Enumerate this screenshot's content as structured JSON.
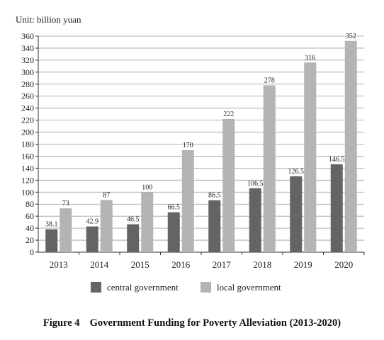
{
  "unit_label": "Unit: billion yuan",
  "caption": {
    "number": "Figure 4",
    "title": "Government Funding for Poverty Alleviation (2013-2020)"
  },
  "colors": {
    "central": "#646464",
    "local": "#b4b4b4",
    "axis": "#333333",
    "grid": "#9a9a9a"
  },
  "chart_data": {
    "type": "bar",
    "categories": [
      "2013",
      "2014",
      "2015",
      "2016",
      "2017",
      "2018",
      "2019",
      "2020"
    ],
    "series": [
      {
        "name": "central government",
        "values": [
          38.1,
          42.9,
          46.5,
          66.5,
          86.5,
          106.5,
          126.5,
          146.5
        ],
        "labels": [
          "38.1",
          "42.9",
          "46.5",
          "66.5",
          "86.5",
          "106.5",
          "126.5",
          "146.5"
        ]
      },
      {
        "name": "local government",
        "values": [
          73,
          87,
          100,
          170,
          222,
          278,
          316,
          352
        ],
        "labels": [
          "73",
          "87",
          "100",
          "170",
          "222",
          "278",
          "316",
          "352"
        ]
      }
    ],
    "ylim": [
      0,
      360
    ],
    "ytick_step": 20,
    "grid": true,
    "legend": "bottom-center"
  }
}
